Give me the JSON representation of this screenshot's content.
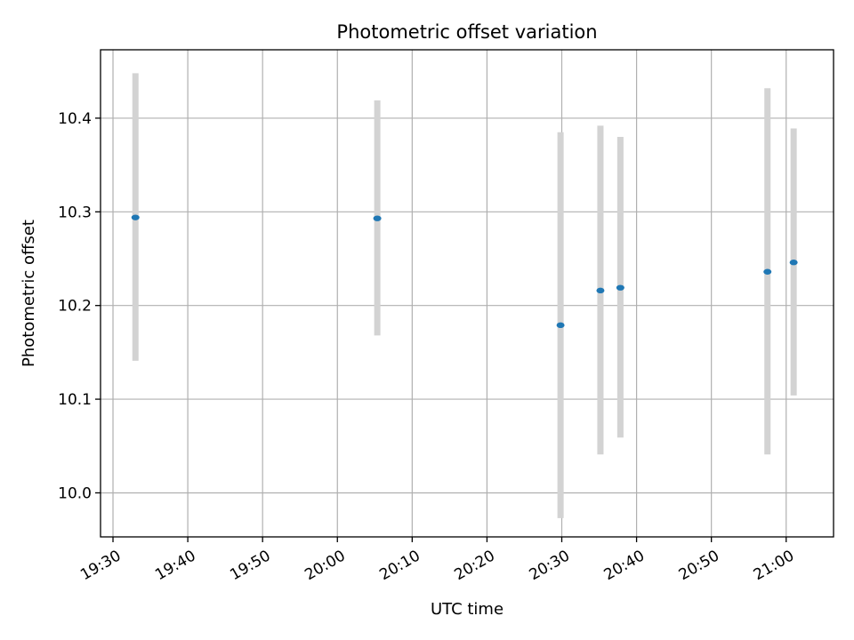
{
  "chart_data": {
    "type": "scatter",
    "title": "Photometric offset variation",
    "xlabel": "UTC time",
    "ylabel": "Photometric offset",
    "x_tick_labels": [
      "19:30",
      "19:40",
      "19:50",
      "20:00",
      "20:10",
      "20:20",
      "20:30",
      "20:40",
      "20:50",
      "21:00"
    ],
    "y_tick_labels": [
      "10.0",
      "10.1",
      "10.2",
      "10.3",
      "10.4"
    ],
    "xlim": [
      "19:28:20",
      "21:06:20"
    ],
    "ylim": [
      9.953,
      10.473
    ],
    "grid": true,
    "colors": {
      "point": "#1f77b4",
      "errorbar": "#d3d3d3"
    },
    "points": [
      {
        "x": "19:33:00",
        "y": 10.294,
        "yerr_low": 10.141,
        "yerr_high": 10.448
      },
      {
        "x": "20:05:20",
        "y": 10.293,
        "yerr_low": 10.168,
        "yerr_high": 10.419
      },
      {
        "x": "20:29:50",
        "y": 10.179,
        "yerr_low": 9.973,
        "yerr_high": 10.385
      },
      {
        "x": "20:35:10",
        "y": 10.216,
        "yerr_low": 10.041,
        "yerr_high": 10.392
      },
      {
        "x": "20:37:50",
        "y": 10.219,
        "yerr_low": 10.059,
        "yerr_high": 10.38
      },
      {
        "x": "20:57:30",
        "y": 10.236,
        "yerr_low": 10.041,
        "yerr_high": 10.432
      },
      {
        "x": "21:01:00",
        "y": 10.246,
        "yerr_low": 10.104,
        "yerr_high": 10.389
      }
    ]
  }
}
